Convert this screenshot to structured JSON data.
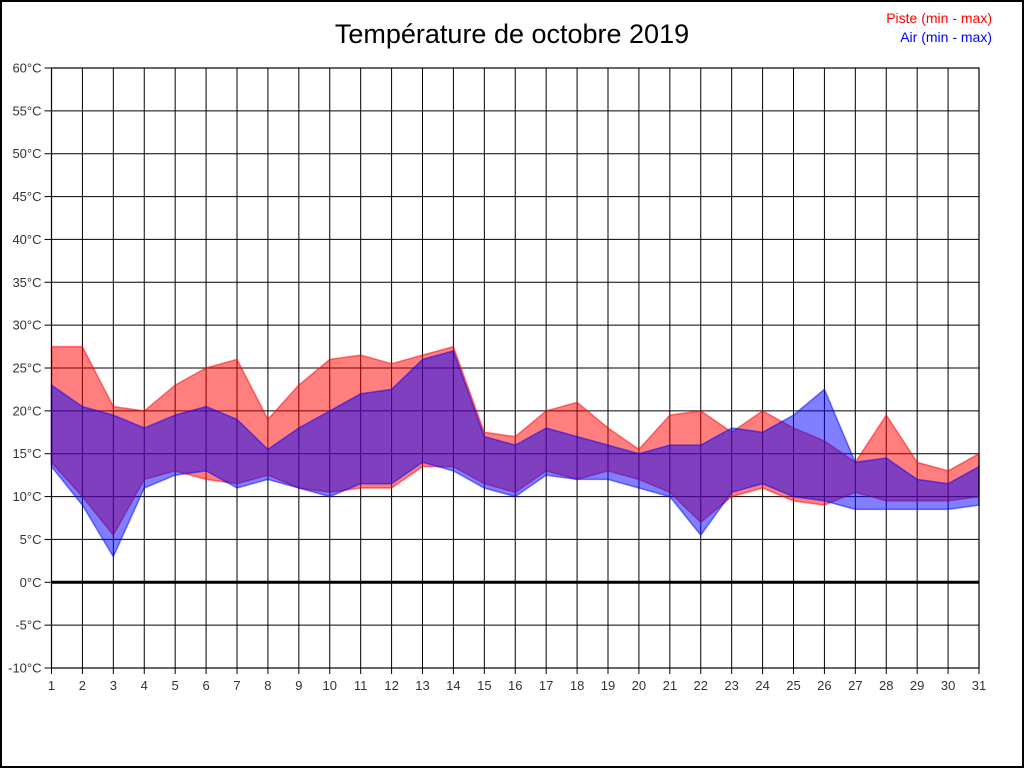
{
  "title": "Température de octobre 2019",
  "legend": {
    "piste_label": "Piste (min - max)",
    "piste_color": "#ff0000",
    "air_label": "Air (min - max)",
    "air_color": "#0000ff"
  },
  "chart_data": {
    "type": "area",
    "title": "Température de octobre 2019",
    "xlabel": "",
    "ylabel": "°C",
    "ylim": [
      -10,
      60
    ],
    "grid": true,
    "zero_line_bold": true,
    "legend_position": "top-right",
    "xticks": [
      1,
      2,
      3,
      4,
      5,
      6,
      7,
      8,
      9,
      10,
      11,
      12,
      13,
      14,
      15,
      16,
      17,
      18,
      19,
      20,
      21,
      22,
      23,
      24,
      25,
      26,
      27,
      28,
      29,
      30,
      31
    ],
    "yticks": [
      60,
      55,
      50,
      45,
      40,
      35,
      30,
      25,
      20,
      15,
      10,
      5,
      0,
      -5,
      -10
    ],
    "ytick_suffix": "°C",
    "x": [
      1,
      2,
      3,
      4,
      5,
      6,
      7,
      8,
      9,
      10,
      11,
      12,
      13,
      14,
      15,
      16,
      17,
      18,
      19,
      20,
      21,
      22,
      23,
      24,
      25,
      26,
      27,
      28,
      29,
      30,
      31
    ],
    "series": [
      {
        "name": "Piste (min - max)",
        "fill": "rgba(255,0,0,0.5)",
        "max": [
          27.5,
          27.5,
          20.5,
          20,
          23,
          25,
          26,
          19,
          23,
          26,
          26.5,
          25.5,
          26.5,
          27.5,
          17.5,
          17,
          20,
          21,
          18,
          15.5,
          19.5,
          20,
          17.5,
          20,
          18,
          16.5,
          14,
          19.5,
          14,
          13,
          15
        ],
        "min": [
          14,
          10,
          5.5,
          12,
          13,
          12,
          11.5,
          12.5,
          11,
          10.5,
          11,
          11,
          13.5,
          13.5,
          11.5,
          10.5,
          13,
          12,
          13,
          12,
          10.5,
          7,
          10,
          11,
          9.5,
          9,
          10.5,
          9.5,
          9.5,
          9.5,
          10
        ]
      },
      {
        "name": "Air (min - max)",
        "fill": "rgba(0,0,255,0.5)",
        "max": [
          23,
          20.5,
          19.5,
          18,
          19.5,
          20.5,
          19,
          15.5,
          18,
          20,
          22,
          22.5,
          26,
          27,
          17,
          16,
          18,
          17,
          16,
          15,
          16,
          16,
          18,
          17.5,
          19.5,
          22.5,
          14,
          14.5,
          12,
          11.5,
          13.5
        ],
        "min": [
          13.5,
          9,
          3,
          11,
          12.5,
          13,
          11,
          12,
          11,
          10,
          11.5,
          11.5,
          14,
          13,
          11,
          10,
          12.5,
          12,
          12,
          11,
          10,
          5.5,
          10.5,
          11.5,
          10,
          9.5,
          8.5,
          8.5,
          8.5,
          8.5,
          9
        ]
      }
    ]
  }
}
